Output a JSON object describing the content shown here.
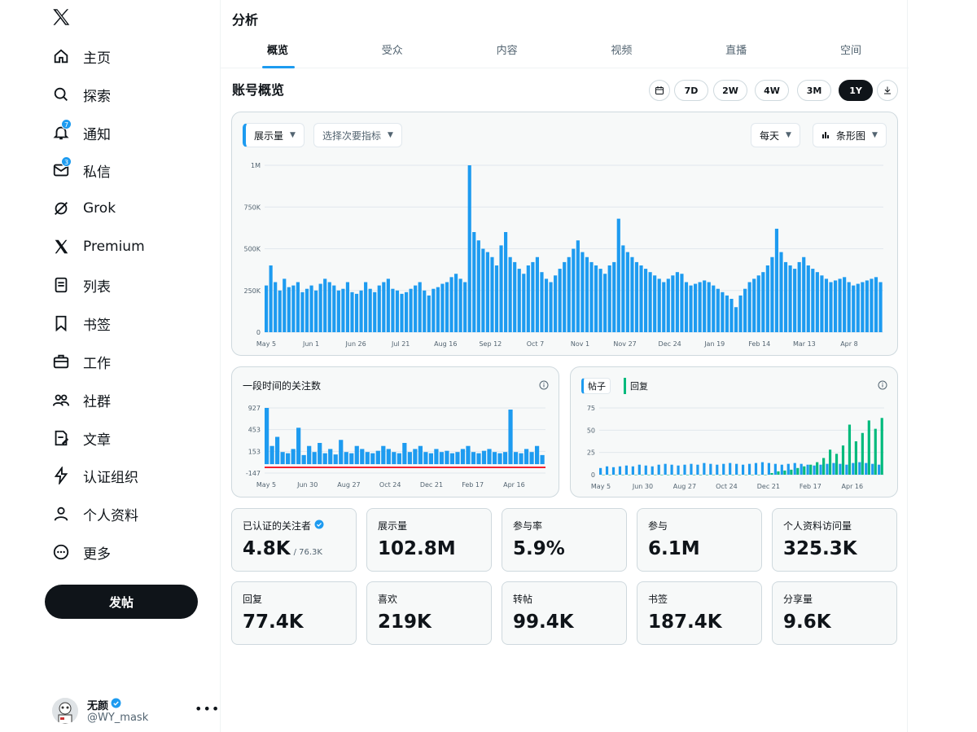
{
  "sidebar": {
    "nav": [
      {
        "label": "主页",
        "icon": "home-icon"
      },
      {
        "label": "探索",
        "icon": "search-icon"
      },
      {
        "label": "通知",
        "icon": "bell-icon",
        "badge": "7"
      },
      {
        "label": "私信",
        "icon": "mail-icon",
        "badge": "3"
      },
      {
        "label": "Grok",
        "icon": "grok-icon"
      },
      {
        "label": "Premium",
        "icon": "x-logo-icon"
      },
      {
        "label": "列表",
        "icon": "list-icon"
      },
      {
        "label": "书签",
        "icon": "bookmark-icon"
      },
      {
        "label": "工作",
        "icon": "briefcase-icon"
      },
      {
        "label": "社群",
        "icon": "people-icon"
      },
      {
        "label": "文章",
        "icon": "article-icon"
      },
      {
        "label": "认证组织",
        "icon": "lightning-icon"
      },
      {
        "label": "个人资料",
        "icon": "user-icon"
      },
      {
        "label": "更多",
        "icon": "more-icon"
      }
    ],
    "post_button": "发帖",
    "profile": {
      "name": "无颜",
      "handle": "@WY_mask"
    }
  },
  "header": {
    "title": "分析",
    "tabs": [
      "概览",
      "受众",
      "内容",
      "视频",
      "直播",
      "空间"
    ],
    "active_tab": "概览"
  },
  "overview": {
    "title": "账号概览",
    "ranges": [
      "7D",
      "2W",
      "4W",
      "3M",
      "1Y"
    ],
    "active_range": "1Y"
  },
  "main_chart_controls": {
    "primary_metric": "展示量",
    "secondary_metric": "选择次要指标",
    "interval": "每天",
    "chart_type": "条形图"
  },
  "followers_chart": {
    "title": "一段时间的关注数"
  },
  "posts_chart": {
    "legend_posts": "帖子",
    "legend_replies": "回复"
  },
  "stats": [
    {
      "label": "已认证的关注者",
      "value": "4.8K",
      "sub": "/ 76.3K",
      "verified": true
    },
    {
      "label": "展示量",
      "value": "102.8M"
    },
    {
      "label": "参与率",
      "value": "5.9%"
    },
    {
      "label": "参与",
      "value": "6.1M"
    },
    {
      "label": "个人资料访问量",
      "value": "325.3K"
    },
    {
      "label": "回复",
      "value": "77.4K"
    },
    {
      "label": "喜欢",
      "value": "219K"
    },
    {
      "label": "转帖",
      "value": "99.4K"
    },
    {
      "label": "书签",
      "value": "187.4K"
    },
    {
      "label": "分享量",
      "value": "9.6K"
    }
  ],
  "colors": {
    "accent": "#1d9bf0",
    "negative": "#f4212e",
    "replies": "#00ba7c",
    "text": "#0f1419"
  },
  "chart_data": [
    {
      "type": "bar",
      "title": "",
      "yticks": [
        "1M",
        "750K",
        "500K",
        "250K",
        "0"
      ],
      "ylim": [
        0,
        1000000
      ],
      "xticks": [
        "May 5",
        "Jun 1",
        "Jun 26",
        "Jul 21",
        "Aug 16",
        "Sep 12",
        "Oct 7",
        "Nov 1",
        "Nov 27",
        "Dec 24",
        "Jan 19",
        "Feb 14",
        "Mar 13",
        "Apr 8"
      ],
      "series": [
        {
          "name": "展示量",
          "values": [
            280000,
            400000,
            300000,
            250000,
            320000,
            270000,
            280000,
            300000,
            240000,
            260000,
            280000,
            250000,
            290000,
            320000,
            300000,
            280000,
            250000,
            260000,
            300000,
            240000,
            230000,
            250000,
            300000,
            260000,
            240000,
            280000,
            300000,
            320000,
            260000,
            250000,
            230000,
            240000,
            260000,
            280000,
            300000,
            250000,
            220000,
            260000,
            270000,
            290000,
            300000,
            330000,
            350000,
            320000,
            300000,
            1000000,
            600000,
            550000,
            500000,
            480000,
            450000,
            400000,
            520000,
            600000,
            450000,
            420000,
            380000,
            350000,
            400000,
            420000,
            450000,
            360000,
            320000,
            300000,
            340000,
            380000,
            420000,
            450000,
            500000,
            550000,
            480000,
            450000,
            420000,
            400000,
            380000,
            350000,
            400000,
            420000,
            680000,
            520000,
            480000,
            450000,
            420000,
            400000,
            380000,
            360000,
            340000,
            320000,
            300000,
            320000,
            340000,
            360000,
            350000,
            300000,
            280000,
            290000,
            300000,
            310000,
            300000,
            280000,
            260000,
            240000,
            220000,
            200000,
            150000,
            220000,
            260000,
            300000,
            320000,
            340000,
            360000,
            400000,
            450000,
            620000,
            480000,
            420000,
            400000,
            380000,
            420000,
            450000,
            400000,
            380000,
            360000,
            340000,
            320000,
            300000,
            310000,
            320000,
            330000,
            300000,
            280000,
            290000,
            300000,
            310000,
            320000,
            330000,
            300000
          ]
        }
      ]
    },
    {
      "type": "bar",
      "title": "一段时间的关注数",
      "yticks": [
        "927",
        "453",
        "153",
        "-147"
      ],
      "ylim": [
        -147,
        927
      ],
      "xticks": [
        "May 5",
        "Jun 30",
        "Aug 27",
        "Oct 24",
        "Dec 21",
        "Feb 17",
        "Apr 16"
      ],
      "series": [
        {
          "name": "关注数",
          "values": [
            927,
            300,
            450,
            200,
            180,
            250,
            600,
            150,
            300,
            200,
            350,
            180,
            250,
            160,
            400,
            200,
            180,
            300,
            250,
            200,
            180,
            220,
            300,
            250,
            200,
            180,
            350,
            200,
            250,
            300,
            200,
            180,
            250,
            200,
            220,
            180,
            200,
            250,
            300,
            200,
            180,
            220,
            250,
            200,
            180,
            200,
            900,
            200,
            180,
            250,
            200,
            300,
            150
          ]
        }
      ]
    },
    {
      "type": "bar",
      "title": "",
      "yticks": [
        "75",
        "50",
        "25",
        "0"
      ],
      "ylim": [
        0,
        80
      ],
      "xticks": [
        "May 5",
        "Jun 30",
        "Aug 27",
        "Oct 24",
        "Dec 21",
        "Feb 17",
        "Apr 16"
      ],
      "series": [
        {
          "name": "帖子",
          "values": [
            8,
            10,
            9,
            10,
            11,
            10,
            12,
            11,
            10,
            12,
            13,
            12,
            11,
            12,
            13,
            12,
            14,
            13,
            12,
            13,
            14,
            13,
            12,
            13,
            14,
            15,
            14,
            13,
            12,
            13,
            14,
            13,
            12,
            11,
            12,
            13,
            14,
            13,
            12,
            14,
            15,
            14,
            13,
            12
          ]
        },
        {
          "name": "回复",
          "values": [
            0,
            0,
            0,
            0,
            0,
            0,
            0,
            0,
            0,
            0,
            0,
            0,
            0,
            0,
            0,
            0,
            0,
            0,
            0,
            0,
            0,
            0,
            0,
            0,
            0,
            0,
            2,
            4,
            5,
            6,
            8,
            10,
            12,
            15,
            20,
            30,
            25,
            35,
            60,
            40,
            50,
            65,
            55,
            68
          ]
        }
      ]
    }
  ]
}
